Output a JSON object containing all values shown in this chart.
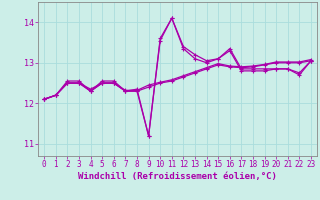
{
  "xlabel": "Windchill (Refroidissement éolien,°C)",
  "bg_color": "#cceee8",
  "line_color": "#aa00aa",
  "grid_color": "#aadddd",
  "xlim": [
    -0.5,
    23.5
  ],
  "ylim": [
    10.7,
    14.5
  ],
  "yticks": [
    11,
    12,
    13,
    14
  ],
  "xtick_labels": [
    "0",
    "1",
    "2",
    "3",
    "4",
    "5",
    "6",
    "7",
    "8",
    "9",
    "10",
    "11",
    "12",
    "13",
    "14",
    "15",
    "16",
    "17",
    "18",
    "19",
    "20",
    "21",
    "22",
    "23"
  ],
  "line1_y": [
    12.1,
    12.2,
    12.55,
    12.55,
    12.3,
    12.55,
    12.55,
    12.3,
    12.3,
    11.2,
    13.6,
    14.1,
    13.4,
    13.2,
    13.05,
    13.1,
    13.35,
    12.85,
    12.85,
    12.85,
    12.85,
    12.85,
    12.7,
    13.05
  ],
  "line2_y": [
    12.1,
    12.2,
    12.5,
    12.5,
    12.3,
    12.5,
    12.5,
    12.3,
    12.35,
    11.2,
    13.55,
    14.1,
    13.35,
    13.1,
    13.0,
    13.1,
    13.3,
    12.8,
    12.8,
    12.8,
    12.85,
    12.85,
    12.75,
    13.05
  ],
  "line3_y": [
    12.1,
    12.2,
    12.5,
    12.5,
    12.3,
    12.5,
    12.5,
    12.3,
    12.3,
    12.4,
    12.5,
    12.55,
    12.65,
    12.75,
    12.85,
    12.95,
    12.9,
    12.88,
    12.9,
    12.95,
    13.0,
    13.0,
    13.0,
    13.05
  ],
  "line4_y": [
    12.1,
    12.2,
    12.5,
    12.5,
    12.35,
    12.5,
    12.5,
    12.32,
    12.32,
    12.45,
    12.52,
    12.58,
    12.68,
    12.78,
    12.88,
    12.98,
    12.92,
    12.9,
    12.92,
    12.96,
    13.02,
    13.02,
    13.02,
    13.08
  ],
  "tick_fontsize": 5.5,
  "xlabel_fontsize": 6.5
}
